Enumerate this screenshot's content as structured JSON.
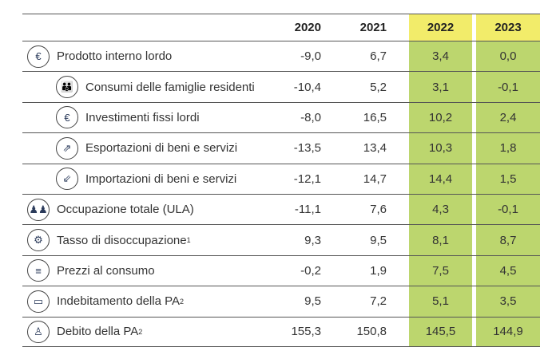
{
  "header": {
    "years": [
      "2020",
      "2021",
      "2022",
      "2023"
    ]
  },
  "rows": [
    {
      "label": "Prodotto interno lordo",
      "sup": "",
      "icon": "euro-coin-icon",
      "level": 0,
      "v": [
        "-9,0",
        "6,7",
        "3,4",
        "0,0"
      ]
    },
    {
      "label": "Consumi delle famiglie residenti",
      "sup": "",
      "icon": "family-icon",
      "level": 1,
      "v": [
        "-10,4",
        "5,2",
        "3,1",
        "-0,1"
      ]
    },
    {
      "label": "Investimenti fissi lordi",
      "sup": "",
      "icon": "investment-icon",
      "level": 1,
      "v": [
        "-8,0",
        "16,5",
        "10,2",
        "2,4"
      ]
    },
    {
      "label": "Esportazioni di beni e servizi",
      "sup": "",
      "icon": "export-icon",
      "level": 1,
      "v": [
        "-13,5",
        "13,4",
        "10,3",
        "1,8"
      ]
    },
    {
      "label": "Importazioni di beni e servizi",
      "sup": "",
      "icon": "import-icon",
      "level": 1,
      "v": [
        "-12,1",
        "14,7",
        "14,4",
        "1,5"
      ]
    },
    {
      "label": "Occupazione totale (ULA)",
      "sup": "",
      "icon": "people-icon",
      "level": 0,
      "v": [
        "-11,1",
        "7,6",
        "4,3",
        "-0,1"
      ]
    },
    {
      "label": "Tasso di disoccupazione",
      "sup": "1",
      "icon": "unemployment-icon",
      "level": 0,
      "v": [
        "9,3",
        "9,5",
        "8,1",
        "8,7"
      ]
    },
    {
      "label": "Prezzi al consumo",
      "sup": "",
      "icon": "coins-icon",
      "level": 0,
      "v": [
        "-0,2",
        "1,9",
        "7,5",
        "4,5"
      ]
    },
    {
      "label": "Indebitamento della PA",
      "sup": "2",
      "icon": "monitor-chart-icon",
      "level": 0,
      "v": [
        "9,5",
        "7,2",
        "5,1",
        "3,5"
      ]
    },
    {
      "label": "Debito della PA",
      "sup": "2",
      "icon": "person-debt-icon",
      "level": 0,
      "v": [
        "155,3",
        "150,8",
        "145,5",
        "144,9"
      ]
    }
  ],
  "colors": {
    "highlight_header": "#f2ec6a",
    "highlight_cells": "#bcd66e"
  }
}
